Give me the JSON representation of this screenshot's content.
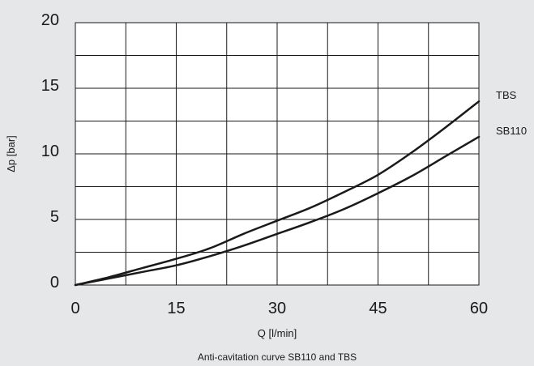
{
  "chart_data": {
    "type": "line",
    "title": "",
    "caption": "Anti-cavitation curve SB110 and TBS",
    "xlabel": "Q [l/min]",
    "ylabel": "Δp [bar]",
    "xlim": [
      0,
      60
    ],
    "ylim": [
      0,
      20
    ],
    "x_ticks": [
      "0",
      "15",
      "30",
      "45",
      "60"
    ],
    "y_ticks": [
      "0",
      "5",
      "10",
      "15",
      "20"
    ],
    "x_gridlines": [
      0,
      7.5,
      15,
      22.5,
      30,
      37.5,
      45,
      52.5,
      60
    ],
    "y_gridlines": [
      0,
      2.5,
      5,
      7.5,
      10,
      12.5,
      15,
      17.5,
      20
    ],
    "grid": true,
    "series": [
      {
        "name": "TBS",
        "x": [
          0,
          5,
          10,
          15,
          20,
          25,
          30,
          35,
          40,
          45,
          50,
          55,
          60
        ],
        "y": [
          0,
          0.6,
          1.3,
          2.0,
          2.8,
          3.9,
          4.9,
          5.9,
          7.1,
          8.4,
          10.1,
          12.0,
          14.0
        ]
      },
      {
        "name": "SB110",
        "x": [
          0,
          5,
          10,
          15,
          20,
          25,
          30,
          35,
          40,
          45,
          50,
          55,
          60
        ],
        "y": [
          0,
          0.5,
          1.0,
          1.5,
          2.2,
          3.0,
          3.9,
          4.8,
          5.8,
          7.0,
          8.3,
          9.8,
          11.3
        ]
      }
    ]
  },
  "colors": {
    "background": "#e6e7e8",
    "plot_area": "#ffffff",
    "lines": "#1a1a1a"
  }
}
